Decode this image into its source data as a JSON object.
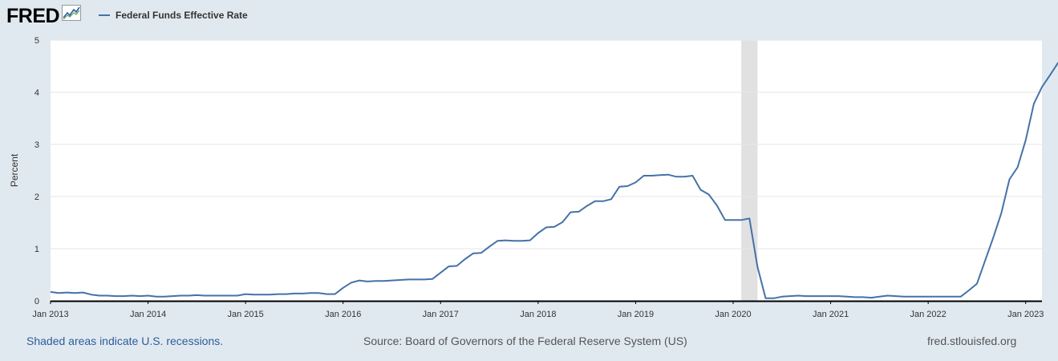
{
  "header": {
    "logo_text": "FRED",
    "legend_label": "Federal Funds Effective Rate"
  },
  "footer": {
    "recession_note": "Shaded areas indicate U.S. recessions.",
    "source": "Source: Board of Governors of the Federal Reserve System (US)",
    "site": "fred.stlouisfed.org"
  },
  "colors": {
    "series": "#4572a7",
    "recession": "#e1e1e1",
    "grid": "#e6e6e6",
    "background": "#e1e9f0"
  },
  "chart_data": {
    "type": "line",
    "title": "",
    "xlabel": "",
    "ylabel": "Percent",
    "ylim": [
      0,
      5
    ],
    "yticks": [
      "0",
      "1",
      "2",
      "3",
      "4",
      "5"
    ],
    "xlim": [
      "2013-01",
      "2023-03"
    ],
    "x_tick_labels": [
      {
        "label": "Jan 2013",
        "date": "2013-01"
      },
      {
        "label": "Jan 2014",
        "date": "2014-01"
      },
      {
        "label": "Jan 2015",
        "date": "2015-01"
      },
      {
        "label": "Jan 2016",
        "date": "2016-01"
      },
      {
        "label": "Jan 2017",
        "date": "2017-01"
      },
      {
        "label": "Jan 2018",
        "date": "2018-01"
      },
      {
        "label": "Jan 2019",
        "date": "2019-01"
      },
      {
        "label": "Jan 2020",
        "date": "2020-01"
      },
      {
        "label": "Jan 2021",
        "date": "2021-01"
      },
      {
        "label": "Jan 2022",
        "date": "2022-01"
      },
      {
        "label": "Jan 2023",
        "date": "2023-01"
      }
    ],
    "grid": true,
    "recessions": [
      {
        "start": "2020-02",
        "end": "2020-04"
      }
    ],
    "series": [
      {
        "name": "Federal Funds Effective Rate",
        "start": "2013-01",
        "frequency": "monthly",
        "values": [
          0.17,
          0.15,
          0.16,
          0.15,
          0.16,
          0.12,
          0.1,
          0.1,
          0.09,
          0.09,
          0.1,
          0.09,
          0.1,
          0.08,
          0.08,
          0.09,
          0.1,
          0.1,
          0.11,
          0.1,
          0.1,
          0.1,
          0.1,
          0.1,
          0.13,
          0.12,
          0.12,
          0.12,
          0.13,
          0.13,
          0.14,
          0.14,
          0.15,
          0.15,
          0.13,
          0.13,
          0.25,
          0.35,
          0.39,
          0.37,
          0.38,
          0.38,
          0.39,
          0.4,
          0.41,
          0.41,
          0.41,
          0.42,
          0.54,
          0.66,
          0.67,
          0.8,
          0.91,
          0.92,
          1.04,
          1.15,
          1.16,
          1.15,
          1.15,
          1.16,
          1.3,
          1.41,
          1.42,
          1.51,
          1.7,
          1.71,
          1.82,
          1.91,
          1.91,
          1.95,
          2.19,
          2.2,
          2.27,
          2.4,
          2.4,
          2.41,
          2.42,
          2.38,
          2.38,
          2.4,
          2.13,
          2.04,
          1.83,
          1.55,
          1.55,
          1.55,
          1.58,
          0.65,
          0.05,
          0.05,
          0.08,
          0.09,
          0.1,
          0.09,
          0.09,
          0.09,
          0.09,
          0.09,
          0.08,
          0.07,
          0.07,
          0.06,
          0.08,
          0.1,
          0.09,
          0.08,
          0.08,
          0.08,
          0.08,
          0.08,
          0.08,
          0.08,
          0.08,
          0.2,
          0.33,
          0.77,
          1.21,
          1.68,
          2.33,
          2.56,
          3.08,
          3.78,
          4.1,
          4.33,
          4.57
        ]
      }
    ]
  }
}
